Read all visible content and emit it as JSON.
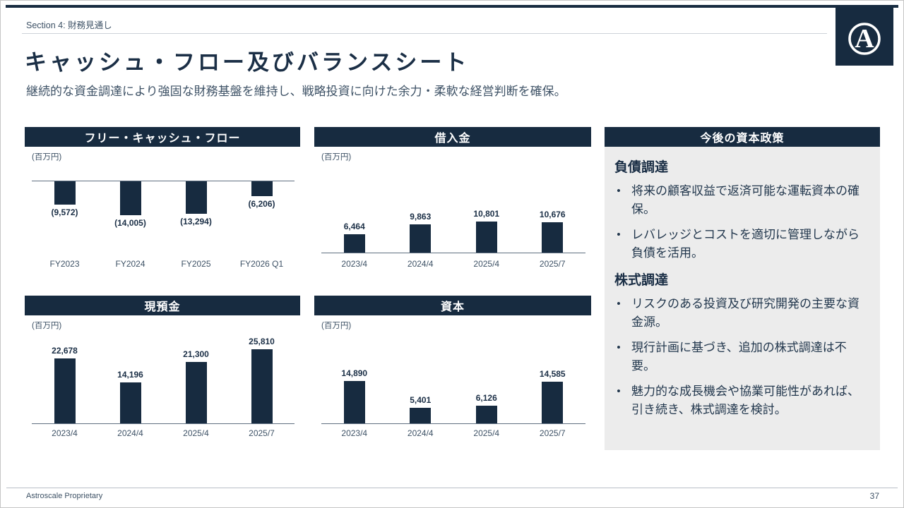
{
  "header": {
    "section_label": "Section 4: 財務見通し"
  },
  "title": "キャッシュ・フロー及びバランスシート",
  "subtitle": "継続的な資金調達により強固な財務基盤を維持し、戦略投資に向けた余力・柔軟な経営判断を確保。",
  "logo": {
    "letter": "A"
  },
  "colors": {
    "navy": "#172B40",
    "panel_gray": "#ECECEC",
    "text_dark": "#1B2F46",
    "text_mid": "#3E5266"
  },
  "chart_data": [
    {
      "id": "free-cash-flow",
      "type": "bar",
      "title": "フリー・キャッシュ・フロー",
      "unit": "(百万円)",
      "direction": "down",
      "categories": [
        "FY2023",
        "FY2024",
        "FY2025",
        "FY2026 Q1"
      ],
      "values": [
        -9572,
        -14005,
        -13294,
        -6206
      ],
      "labels": [
        "(9,572)",
        "(14,005)",
        "(13,294)",
        "(6,206)"
      ],
      "ylim": [
        -15000,
        0
      ],
      "grid": false,
      "legend": false
    },
    {
      "id": "borrowings",
      "type": "bar",
      "title": "借入金",
      "unit": "(百万円)",
      "direction": "up",
      "categories": [
        "2023/4",
        "2024/4",
        "2025/4",
        "2025/7"
      ],
      "values": [
        6464,
        9863,
        10801,
        10676
      ],
      "labels": [
        "6,464",
        "9,863",
        "10,801",
        "10,676"
      ],
      "ylim": [
        0,
        11000
      ],
      "grid": false,
      "legend": false
    },
    {
      "id": "cash-and-deposits",
      "type": "bar",
      "title": "現預金",
      "unit": "(百万円)",
      "direction": "up",
      "categories": [
        "2023/4",
        "2024/4",
        "2025/4",
        "2025/7"
      ],
      "values": [
        22678,
        14196,
        21300,
        25810
      ],
      "labels": [
        "22,678",
        "14,196",
        "21,300",
        "25,810"
      ],
      "ylim": [
        0,
        26000
      ],
      "grid": false,
      "legend": false
    },
    {
      "id": "equity",
      "type": "bar",
      "title": "資本",
      "unit": "(百万円)",
      "direction": "up",
      "categories": [
        "2023/4",
        "2024/4",
        "2025/4",
        "2025/7"
      ],
      "values": [
        14890,
        5401,
        6126,
        14585
      ],
      "labels": [
        "14,890",
        "5,401",
        "6,126",
        "14,585"
      ],
      "ylim": [
        0,
        15000
      ],
      "grid": false,
      "legend": false
    }
  ],
  "right_panel": {
    "title": "今後の資本政策",
    "bullet_char": "•",
    "sections": [
      {
        "heading": "負債調達",
        "bullets": [
          "将来の顧客収益で返済可能な運転資本の確保。",
          "レバレッジとコストを適切に管理しながら負債を活用。"
        ]
      },
      {
        "heading": "株式調達",
        "bullets": [
          "リスクのある投資及び研究開発の主要な資金源。",
          "現行計画に基づき、追加の株式調達は不要。",
          "魅力的な成長機会や協業可能性があれば、引き続き、株式調達を検討。"
        ]
      }
    ]
  },
  "footer": {
    "left": "Astroscale Proprietary",
    "page": "37"
  }
}
